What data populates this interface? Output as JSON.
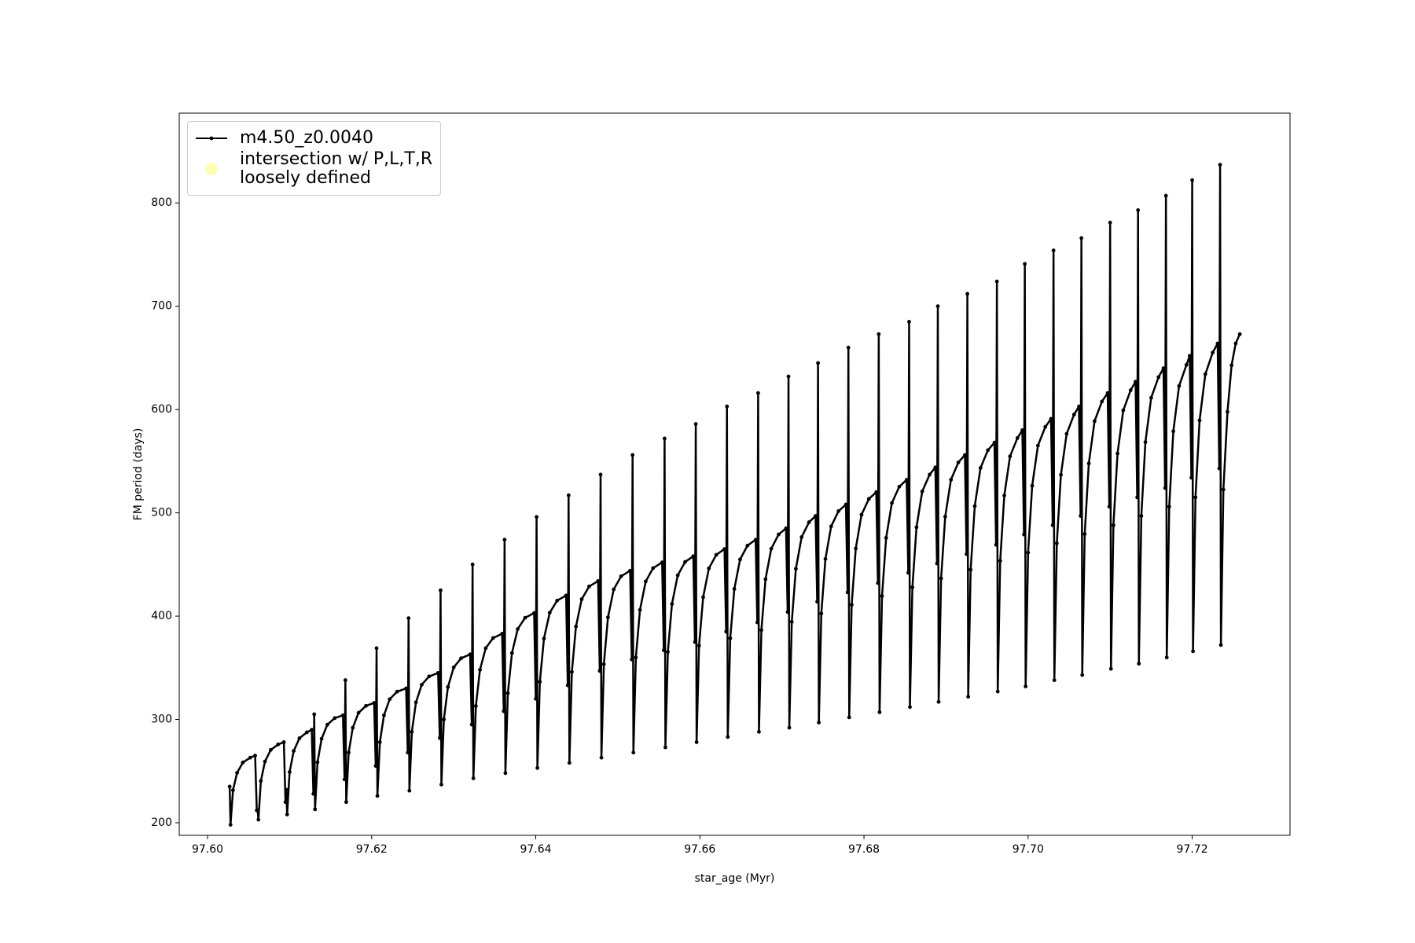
{
  "chart_data": {
    "type": "line",
    "xlabel": "star_age (Myr)",
    "ylabel": "FM period (days)",
    "xlim": [
      97.59655,
      97.73192
    ],
    "ylim": [
      187.8,
      886.9
    ],
    "xticks": [
      {
        "value": 97.6,
        "label": "97.60"
      },
      97.62,
      97.64,
      97.66,
      97.68,
      {
        "value": 97.7,
        "label": "97.70"
      },
      97.72
    ],
    "yticks": [
      200,
      300,
      400,
      500,
      600,
      700,
      800
    ],
    "grid": false,
    "legend": "upper left",
    "series": [
      {
        "name": "m4.50_z0.0040",
        "color": "#000000",
        "x": [
          97.6027,
          97.6028,
          97.6031,
          97.6036,
          97.6043,
          97.6052,
          97.6058,
          97.606,
          97.6061,
          97.6062,
          97.6065,
          97.607,
          97.6077,
          97.6086,
          97.6093,
          97.6095,
          97.6096,
          97.6097,
          97.61,
          97.6105,
          97.6112,
          97.6121,
          97.6127,
          97.6129,
          97.613,
          97.6131,
          97.6134,
          97.6139,
          97.6146,
          97.6155,
          97.6165,
          97.6167,
          97.6168,
          97.6169,
          97.6172,
          97.6177,
          97.6184,
          97.6193,
          97.6203,
          97.6205,
          97.6206,
          97.6207,
          97.621,
          97.6215,
          97.6222,
          97.6231,
          97.6242,
          97.6244,
          97.6245,
          97.6246,
          97.6249,
          97.6254,
          97.6261,
          97.627,
          97.6281,
          97.6283,
          97.6284,
          97.6285,
          97.6288,
          97.6293,
          97.63,
          97.6309,
          97.632,
          97.6322,
          97.6323,
          97.6324,
          97.6327,
          97.6332,
          97.6339,
          97.6348,
          97.6359,
          97.6361,
          97.6362,
          97.6363,
          97.6366,
          97.6371,
          97.6378,
          97.6387,
          97.6398,
          97.64,
          97.6401,
          97.6402,
          97.6405,
          97.641,
          97.6417,
          97.6426,
          97.6437,
          97.6439,
          97.644,
          97.6441,
          97.6444,
          97.6449,
          97.6456,
          97.6465,
          97.6476,
          97.6478,
          97.6479,
          97.648,
          97.6483,
          97.6488,
          97.6495,
          97.6504,
          97.6515,
          97.6517,
          97.6518,
          97.6519,
          97.6522,
          97.6527,
          97.6534,
          97.6543,
          97.6554,
          97.6556,
          97.6557,
          97.6558,
          97.6561,
          97.6566,
          97.6573,
          97.6582,
          97.6592,
          97.6594,
          97.6595,
          97.6596,
          97.6599,
          97.6604,
          97.6611,
          97.662,
          97.663,
          97.6632,
          97.6633,
          97.6634,
          97.6637,
          97.6642,
          97.6649,
          97.6658,
          97.6668,
          97.667,
          97.6671,
          97.6672,
          97.6675,
          97.668,
          97.6687,
          97.6696,
          97.6705,
          97.6707,
          97.6708,
          97.6709,
          97.6712,
          97.6717,
          97.6724,
          97.6733,
          97.6741,
          97.6743,
          97.6744,
          97.6745,
          97.6748,
          97.6753,
          97.676,
          97.6769,
          97.6778,
          97.678,
          97.6781,
          97.6782,
          97.6785,
          97.679,
          97.6797,
          97.6806,
          97.6815,
          97.6817,
          97.6818,
          97.6819,
          97.6822,
          97.6827,
          97.6834,
          97.6843,
          97.6852,
          97.6854,
          97.6855,
          97.6856,
          97.6859,
          97.6864,
          97.6871,
          97.688,
          97.6887,
          97.6889,
          97.689,
          97.6891,
          97.6894,
          97.6899,
          97.6906,
          97.6915,
          97.6923,
          97.6925,
          97.6926,
          97.6927,
          97.693,
          97.6935,
          97.6942,
          97.6951,
          97.6959,
          97.6961,
          97.6962,
          97.6963,
          97.6966,
          97.6971,
          97.6978,
          97.6987,
          97.6993,
          97.6995,
          97.6996,
          97.6997,
          97.7,
          97.7005,
          97.7012,
          97.7021,
          97.7028,
          97.703,
          97.7031,
          97.7032,
          97.7035,
          97.704,
          97.7047,
          97.7056,
          97.7062,
          97.7064,
          97.7065,
          97.7066,
          97.7069,
          97.7074,
          97.7081,
          97.709,
          97.7097,
          97.7099,
          97.71,
          97.7101,
          97.7104,
          97.7109,
          97.7116,
          97.7125,
          97.7131,
          97.7133,
          97.7134,
          97.7135,
          97.7138,
          97.7143,
          97.715,
          97.7159,
          97.7165,
          97.7167,
          97.7168,
          97.7169,
          97.7172,
          97.7177,
          97.7184,
          97.7193,
          97.7197,
          97.7199,
          97.72,
          97.7201,
          97.7204,
          97.7209,
          97.7216,
          97.7225,
          97.7231,
          97.7233,
          97.7234,
          97.7235,
          97.7238,
          97.7243,
          97.7248,
          97.7253,
          97.7258
        ],
        "values": [
          235,
          198,
          231.5,
          248.3,
          258.3,
          263,
          265,
          212,
          212,
          203,
          240.5,
          259.3,
          270.5,
          275.8,
          278,
          220,
          232,
          208,
          249,
          269.5,
          281.8,
          287.5,
          290,
          228,
          305,
          213,
          258.5,
          281.3,
          294.9,
          301.3,
          304,
          242,
          338,
          220,
          268,
          292,
          306.4,
          313.1,
          316,
          255,
          369,
          226,
          278,
          304,
          319.6,
          326.9,
          330,
          268,
          398,
          231,
          288,
          316.5,
          333.6,
          341.6,
          345,
          282,
          425,
          237,
          300,
          331.5,
          350.4,
          359.2,
          363,
          295,
          450,
          243,
          313,
          348,
          369,
          378.8,
          383,
          308,
          474,
          248,
          325.5,
          364.3,
          387.5,
          398.4,
          403,
          320,
          496,
          253,
          336.5,
          378.3,
          403.3,
          415,
          420,
          333,
          517,
          258,
          346,
          390,
          416.4,
          428.7,
          434,
          347,
          537,
          263,
          353.5,
          398.8,
          425.9,
          438.6,
          444,
          358,
          556,
          268,
          360,
          406,
          433.6,
          446.5,
          452,
          367,
          572,
          273,
          365.5,
          411.8,
          439.5,
          452.5,
          458,
          375,
          586,
          278,
          371.5,
          418.3,
          446.3,
          459.4,
          465,
          385,
          603,
          283,
          378.5,
          426.3,
          454.9,
          468.3,
          474,
          394,
          616,
          288,
          386.5,
          435.8,
          465.3,
          479.1,
          485,
          404,
          632,
          292,
          394.5,
          445.8,
          476.5,
          490.9,
          497,
          414,
          645,
          297,
          402.5,
          455.3,
          486.9,
          501.7,
          508,
          423,
          660,
          302,
          411,
          465.5,
          498.2,
          513.5,
          520,
          432,
          673,
          307,
          419.5,
          475.8,
          509.5,
          525.3,
          532,
          442,
          685,
          312,
          428,
          486,
          520.8,
          537,
          544,
          451,
          700,
          317,
          436.5,
          496.3,
          532.1,
          548.8,
          556,
          460,
          712,
          322,
          445,
          506.5,
          543.4,
          560.6,
          568,
          469,
          724,
          327,
          453.5,
          516.8,
          554.7,
          572.4,
          580,
          479,
          741,
          332,
          461.5,
          526.3,
          565.1,
          583.2,
          591,
          488,
          754,
          338,
          470.5,
          536.8,
          576.5,
          595.1,
          603,
          497,
          766,
          343,
          479.5,
          547.8,
          588.7,
          607.8,
          616,
          506,
          781,
          349,
          488,
          557.5,
          599.2,
          618.7,
          627,
          515,
          793,
          354,
          497,
          568.5,
          611.4,
          631.4,
          640,
          524,
          807,
          360,
          506,
          579,
          622.8,
          643.2,
          652,
          534,
          822,
          366,
          515,
          589.5,
          634.2,
          655.1,
          664,
          543,
          837,
          372,
          522.5,
          597.8,
          642.9,
          664,
          673
        ]
      },
      {
        "name": "intersection w/ P,L,T,R\nloosely defined",
        "color": "#ffffb3",
        "type": "scatter",
        "x": [],
        "values": []
      }
    ]
  }
}
